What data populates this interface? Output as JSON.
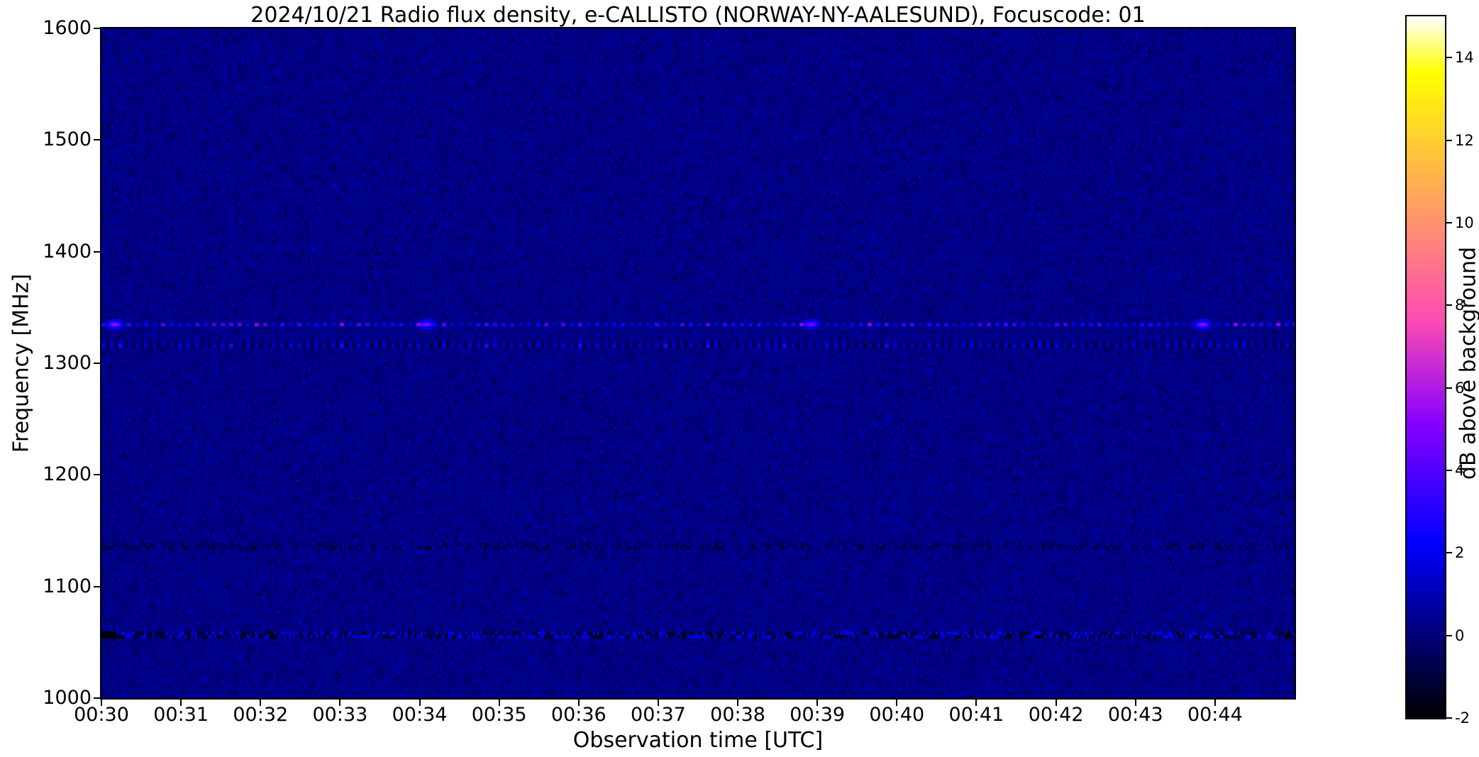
{
  "figure": {
    "title": "2024/10/21  Radio flux density, e-CALLISTO (NORWAY-NY-AALESUND), Focuscode: 01",
    "xlabel": "Observation time [UTC]",
    "ylabel": "Frequency [MHz]",
    "colorbar_label": "dB above background"
  },
  "chart_data": {
    "type": "heatmap",
    "title": "2024/10/21  Radio flux density, e-CALLISTO (NORWAY-NY-AALESUND), Focuscode: 01",
    "xlabel": "Observation time [UTC]",
    "ylabel": "Frequency [MHz]",
    "colorbar_label": "dB above background",
    "colormap": "gnuplot2",
    "start_time": "00:30",
    "end_time": "00:45",
    "x_range_minutes": [
      0,
      15
    ],
    "x_tick_step_min": 1,
    "x_ticks": [
      "00:30",
      "00:31",
      "00:32",
      "00:33",
      "00:34",
      "00:35",
      "00:36",
      "00:37",
      "00:38",
      "00:39",
      "00:40",
      "00:41",
      "00:42",
      "00:43",
      "00:44"
    ],
    "ylim": [
      1000,
      1600
    ],
    "y_ticks": [
      1600,
      1500,
      1400,
      1300,
      1200,
      1100,
      1000
    ],
    "value_range_db": [
      -2,
      15
    ],
    "colorbar_ticks": [
      14,
      12,
      10,
      8,
      6,
      4,
      2,
      0,
      -2
    ],
    "background_level_db": 0.2,
    "noise_std_db": 0.25,
    "bands": [
      {
        "frequency_mhz": 1335,
        "height_mhz": 6,
        "pattern": "pulsed",
        "period_s": 6.4,
        "bright_db": [
          1.2,
          4.2
        ],
        "dark_db": [
          -2.0,
          -0.6
        ],
        "label": "strong pulsed RFI band"
      },
      {
        "frequency_mhz": 1317,
        "height_mhz": 5,
        "pattern": "pulsed",
        "period_s": 6.4,
        "bright_db": [
          0.6,
          2.4
        ],
        "dark_db": [
          -1.6,
          -0.4
        ],
        "label": "weaker pulsed RFI band"
      },
      {
        "frequency_mhz": 1136,
        "height_mhz": 8,
        "pattern": "speckle",
        "dark_fraction": 0.3,
        "bright_fraction": 0.08,
        "dark_db": [
          -1.6,
          -0.5
        ],
        "bright_db": [
          0.3,
          0.9
        ],
        "label": "faint noisy band"
      },
      {
        "frequency_mhz": 1057,
        "height_mhz": 10,
        "pattern": "noisy",
        "leading_black_s": 12,
        "bright_db": [
          0.4,
          2.4
        ],
        "dark_db": [
          -1.5,
          -0.3
        ],
        "label": "broad noisy RFI band"
      }
    ],
    "events": [
      {
        "time": "00:30:10",
        "frequency_mhz": 1335,
        "peak_db": 5.5
      },
      {
        "time": "00:34:05",
        "frequency_mhz": 1335,
        "peak_db": 5.0
      },
      {
        "time": "00:38:55",
        "frequency_mhz": 1335,
        "peak_db": 5.0
      },
      {
        "time": "00:43:50",
        "frequency_mhz": 1335,
        "peak_db": 5.5
      }
    ]
  }
}
